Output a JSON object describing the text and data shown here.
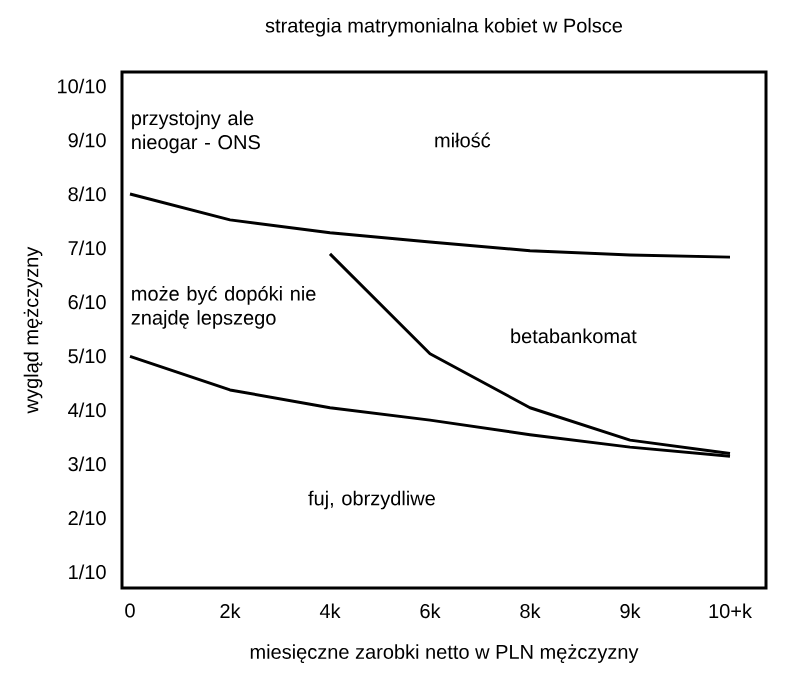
{
  "chart_data": {
    "type": "line",
    "title": "strategia matrymonialna kobiet w Polsce",
    "xlabel": "miesięczne zarobki netto w PLN mężczyzny",
    "ylabel": "wygląd mężczyzny",
    "categories": [
      "0",
      "2k",
      "4k",
      "6k",
      "8k",
      "9k",
      "10+k"
    ],
    "ylim": [
      0.07,
      1.026
    ],
    "yticks": [
      {
        "value": 0.1,
        "label": "1/10"
      },
      {
        "value": 0.2,
        "label": "2/10"
      },
      {
        "value": 0.3,
        "label": "3/10"
      },
      {
        "value": 0.4,
        "label": "4/10"
      },
      {
        "value": 0.5,
        "label": "5/10"
      },
      {
        "value": 0.6,
        "label": "6/10"
      },
      {
        "value": 0.7,
        "label": "7/10"
      },
      {
        "value": 0.8,
        "label": "8/10"
      },
      {
        "value": 0.9,
        "label": "9/10"
      },
      {
        "value": 1.0,
        "label": "10/10"
      }
    ],
    "marker": "none",
    "line_style": "solid",
    "series": [
      {
        "color": "#000000",
        "values": [
          0.8,
          0.752,
          0.728,
          0.711,
          0.695,
          0.687,
          0.683
        ]
      },
      {
        "color": "#000000",
        "values": [
          0.499,
          0.437,
          0.404,
          0.381,
          0.354,
          0.331,
          0.314
        ]
      },
      {
        "color": "#000000",
        "values": [
          null,
          null,
          0.689,
          0.504,
          0.404,
          0.344,
          0.319
        ]
      }
    ],
    "annotations": [
      "przystojny ale nieogar - ONS",
      "miłość",
      "może być dopóki nie znajdę lepszego",
      "betabankomat",
      "fuj, obrzydliwe"
    ]
  }
}
